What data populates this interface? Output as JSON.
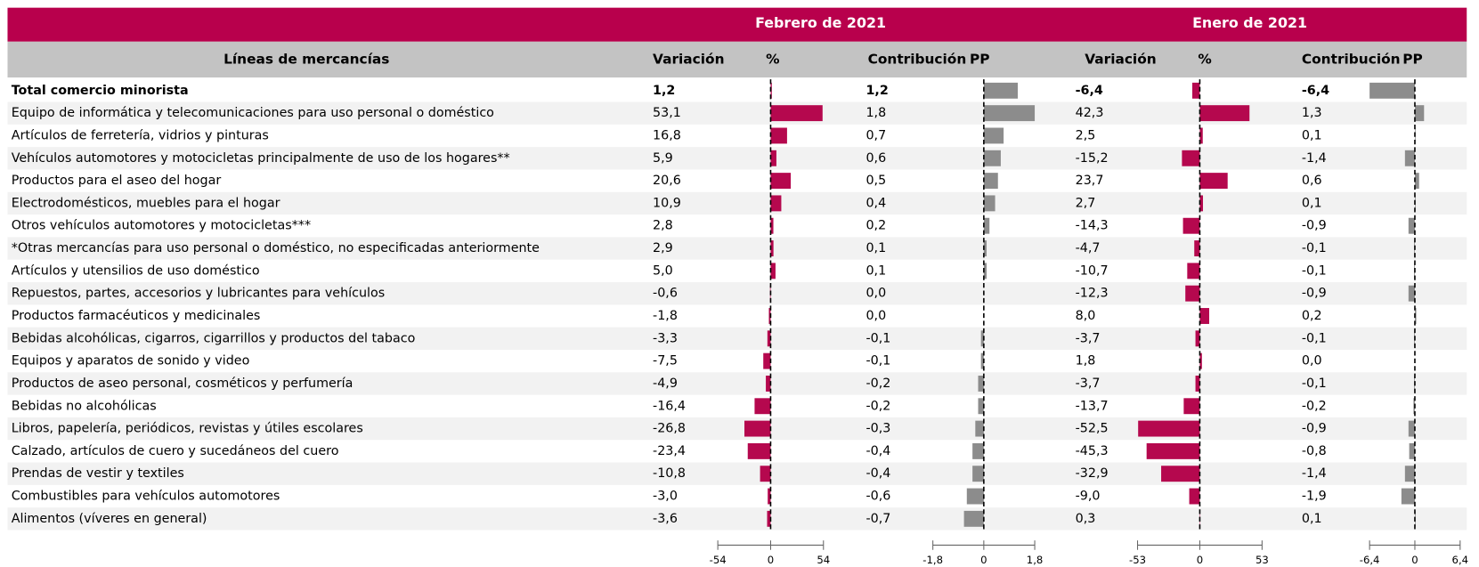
{
  "header": {
    "title": "Líneas de mercancías",
    "months": [
      "Febrero de 2021",
      "Enero de 2021"
    ]
  },
  "rows": [
    "Total comercio minorista",
    "Equipo de informática y telecomunicaciones para uso personal o doméstico",
    "Artículos de ferretería, vidrios y pinturas",
    "Vehículos automotores y motocicletas principalmente de uso de los hogares**",
    "Productos para el aseo del hogar",
    "Electrodomésticos, muebles para el hogar",
    "Otros vehículos automotores y motocicletas***",
    "*Otras mercancías para uso personal o doméstico, no especificadas anteriormente",
    "Artículos y utensilios de uso doméstico",
    "Repuestos, partes, accesorios y lubricantes para vehículos",
    "Productos farmacéuticos y medicinales",
    "Bebidas alcohólicas, cigarros, cigarrillos y productos del tabaco",
    "Equipos y aparatos de sonido y video",
    "Productos de aseo personal, cosméticos y perfumería",
    "Bebidas no alcohólicas",
    "Libros, papelería, periódicos, revistas y útiles escolares",
    "Calzado, artículos de cuero y sucedáneos del cuero",
    "Prendas de vestir y textiles",
    "Combustibles para vehículos automotores",
    "Alimentos (víveres en general)"
  ],
  "panels": [
    {
      "label": "Variación",
      "unit": "%",
      "color": "#b5084e",
      "xlim": [
        -54,
        54
      ],
      "xticks": [
        -54,
        0,
        54
      ],
      "values": [
        1.2,
        53.1,
        16.8,
        5.9,
        20.6,
        10.9,
        2.8,
        2.9,
        5.0,
        -0.6,
        -1.8,
        -3.3,
        -7.5,
        -4.9,
        -16.4,
        -26.8,
        -23.4,
        -10.8,
        -3.0,
        -3.6
      ],
      "value_labels": [
        "1,2",
        "53,1",
        "16,8",
        "5,9",
        "20,6",
        "10,9",
        "2,8",
        "2,9",
        "5,0",
        "-0,6",
        "-1,8",
        "-3,3",
        "-7,5",
        "-4,9",
        "-16,4",
        "-26,8",
        "-23,4",
        "-10,8",
        "-3,0",
        "-3,6"
      ]
    },
    {
      "label": "Contribución",
      "unit": "PP",
      "color": "#8c8c8c",
      "xlim": [
        -1.8,
        1.8
      ],
      "xticks": [
        {
          "value": -1.8,
          "label": "-1,8"
        },
        0,
        {
          "value": 1.8,
          "label": "1,8"
        }
      ],
      "values": [
        1.2,
        1.8,
        0.7,
        0.6,
        0.5,
        0.4,
        0.2,
        0.1,
        0.1,
        0.0,
        0.0,
        -0.1,
        -0.1,
        -0.2,
        -0.2,
        -0.3,
        -0.4,
        -0.4,
        -0.6,
        -0.7
      ],
      "value_labels": [
        "1,2",
        "1,8",
        "0,7",
        "0,6",
        "0,5",
        "0,4",
        "0,2",
        "0,1",
        "0,1",
        "0,0",
        "0,0",
        "-0,1",
        "-0,1",
        "-0,2",
        "-0,2",
        "-0,3",
        "-0,4",
        "-0,4",
        "-0,6",
        "-0,7"
      ]
    },
    {
      "label": "Variación",
      "unit": "%",
      "color": "#b5084e",
      "xlim": [
        -53,
        53
      ],
      "xticks": [
        -53,
        0,
        53
      ],
      "values": [
        -6.4,
        42.3,
        2.5,
        -15.2,
        23.7,
        2.7,
        -14.3,
        -4.7,
        -10.7,
        -12.3,
        8.0,
        -3.7,
        1.8,
        -3.7,
        -13.7,
        -52.5,
        -45.3,
        -32.9,
        -9.0,
        0.3
      ],
      "value_labels": [
        "-6,4",
        "42,3",
        "2,5",
        "-15,2",
        "23,7",
        "2,7",
        "-14,3",
        "-4,7",
        "-10,7",
        "-12,3",
        "8,0",
        "-3,7",
        "1,8",
        "-3,7",
        "-13,7",
        "-52,5",
        "-45,3",
        "-32,9",
        "-9,0",
        "0,3"
      ]
    },
    {
      "label": "Contribución",
      "unit": "PP",
      "color": "#8c8c8c",
      "xlim": [
        -6.4,
        6.4
      ],
      "xticks": [
        {
          "value": -6.4,
          "label": "-6,4"
        },
        0,
        {
          "value": 6.4,
          "label": "6,4"
        }
      ],
      "values": [
        -6.4,
        1.3,
        0.1,
        -1.4,
        0.6,
        0.1,
        -0.9,
        -0.1,
        -0.1,
        -0.9,
        0.2,
        -0.1,
        0.0,
        -0.1,
        -0.2,
        -0.9,
        -0.8,
        -1.4,
        -1.9,
        0.1
      ],
      "value_labels": [
        "-6,4",
        "1,3",
        "0,1",
        "-1,4",
        "0,6",
        "0,1",
        "-0,9",
        "-0,1",
        "-0,1",
        "-0,9",
        "0,2",
        "-0,1",
        "0,0",
        "-0,1",
        "-0,2",
        "-0,9",
        "-0,8",
        "-1,4",
        "-1,9",
        "0,1"
      ]
    }
  ]
}
